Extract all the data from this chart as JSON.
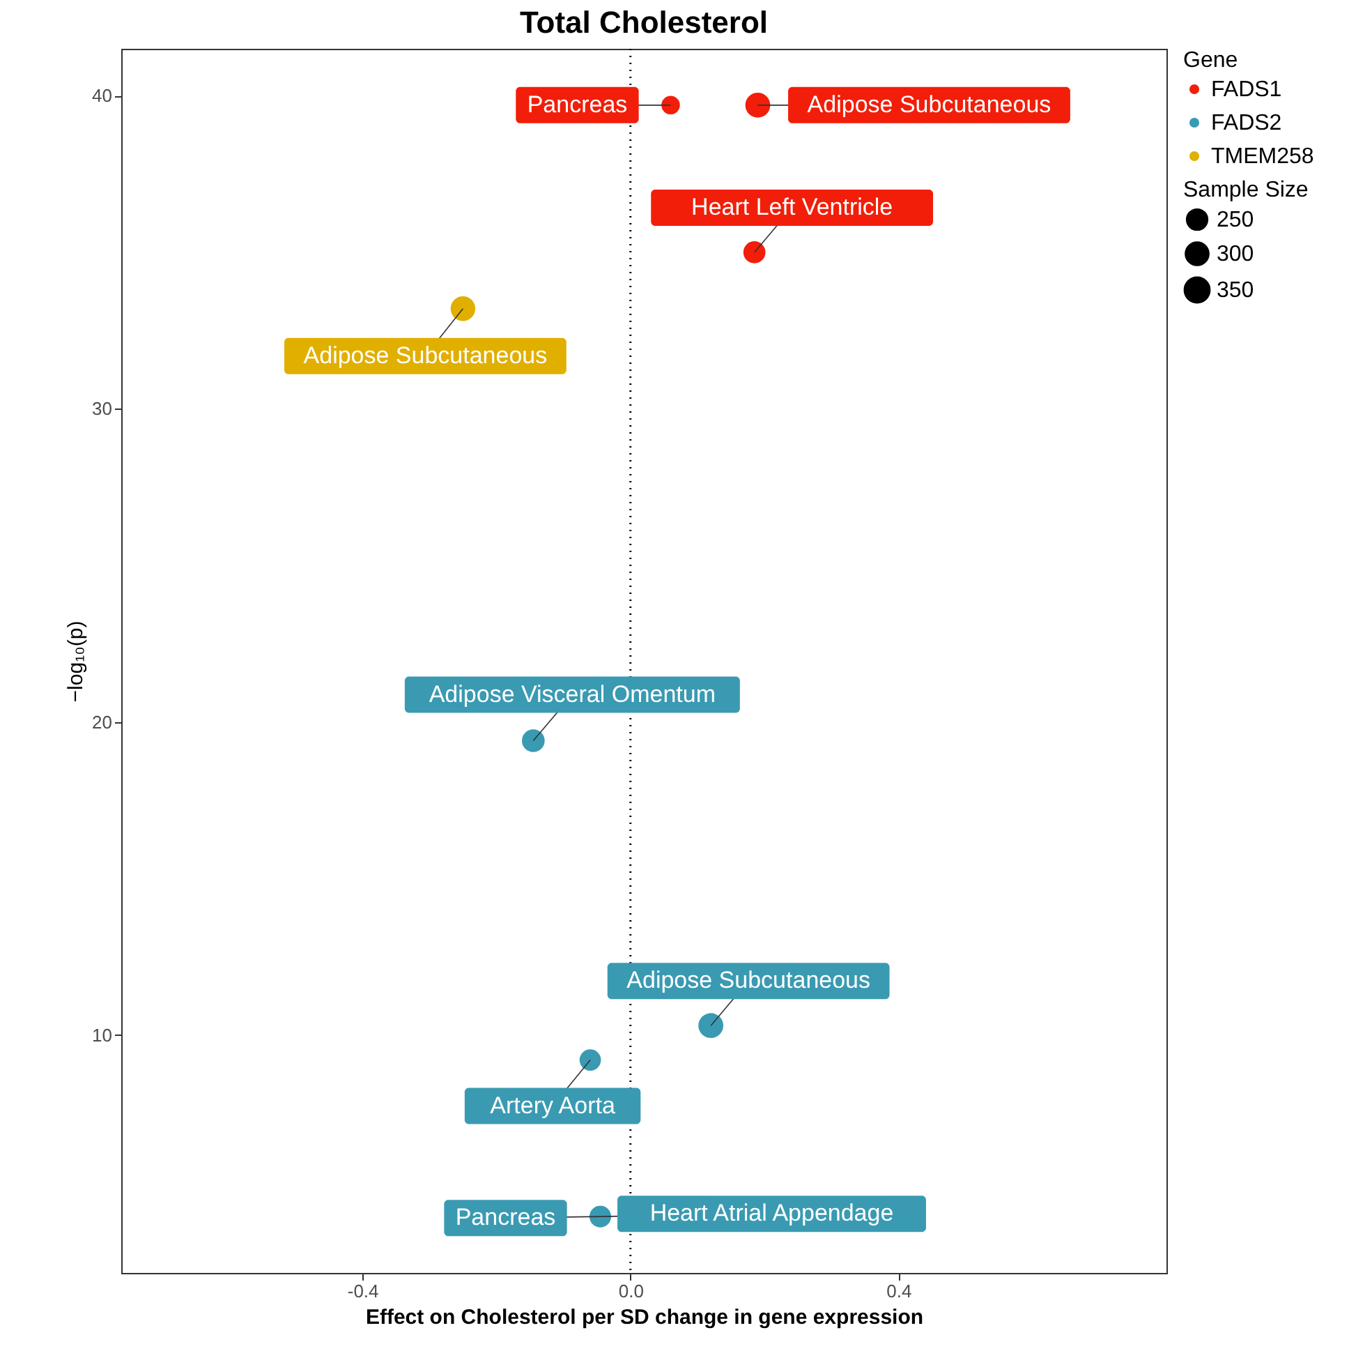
{
  "chart_data": {
    "type": "bubble",
    "title": "Total Cholesterol",
    "xlabel": "Effect on Cholesterol per SD change in gene expression",
    "ylabel": "−log₁₀(p)",
    "legend_title": "Gene",
    "legend": "right",
    "series": [
      {
        "name": "FADS1",
        "color": "#f21e0a",
        "x": [
          0.06,
          0.19,
          0.185
        ],
        "values": [
          39.7,
          39.7,
          35.0
        ],
        "sizes": [
          215,
          350,
          285
        ]
      },
      {
        "name": "FADS2",
        "color": "#3a9ab2",
        "x": [
          -0.145,
          0.12,
          -0.06,
          -0.045,
          -0.045
        ],
        "values": [
          19.4,
          10.3,
          9.2,
          4.2,
          4.2
        ],
        "sizes": [
          300,
          350,
          270,
          270,
          270
        ]
      },
      {
        "name": "TMEM258",
        "color": "#e1af00",
        "x": [
          -0.25
        ],
        "values": [
          33.2
        ],
        "sizes": [
          345
        ]
      }
    ],
    "size_legend": [
      250,
      300,
      350
    ],
    "xlim": [
      -0.76,
      0.8
    ],
    "xticks": [
      {
        "value": -0.4,
        "label": "-0.4"
      },
      {
        "value": 0,
        "label": "0.0"
      },
      {
        "value": 0.4,
        "label": "0.4"
      }
    ],
    "ylim": [
      2.4,
      41.5
    ],
    "yticks": [
      10,
      20,
      30,
      40
    ],
    "grid": false,
    "ref_lines": [
      {
        "axis": "x",
        "value": 0,
        "line_style": "dotted"
      }
    ],
    "annotations": [
      "Sample Size",
      {
        "text": "Pancreas",
        "x": 0.06,
        "y": 39.7
      },
      {
        "text": "Adipose Subcutaneous",
        "x": 0.19,
        "y": 39.7
      },
      {
        "text": "Heart Left Ventricle",
        "x": 0.185,
        "y": 35.0
      },
      {
        "text": "Adipose Subcutaneous",
        "x": -0.25,
        "y": 33.2
      },
      {
        "text": "Adipose Visceral Omentum",
        "x": -0.145,
        "y": 19.4
      },
      {
        "text": "Adipose Subcutaneous",
        "x": 0.12,
        "y": 10.3
      },
      {
        "text": "Artery Aorta",
        "x": -0.06,
        "y": 9.2
      },
      {
        "text": "Pancreas",
        "x": -0.045,
        "y": 4.2
      },
      {
        "text": "Heart Atrial Appendage",
        "x": -0.045,
        "y": 4.2
      }
    ]
  }
}
